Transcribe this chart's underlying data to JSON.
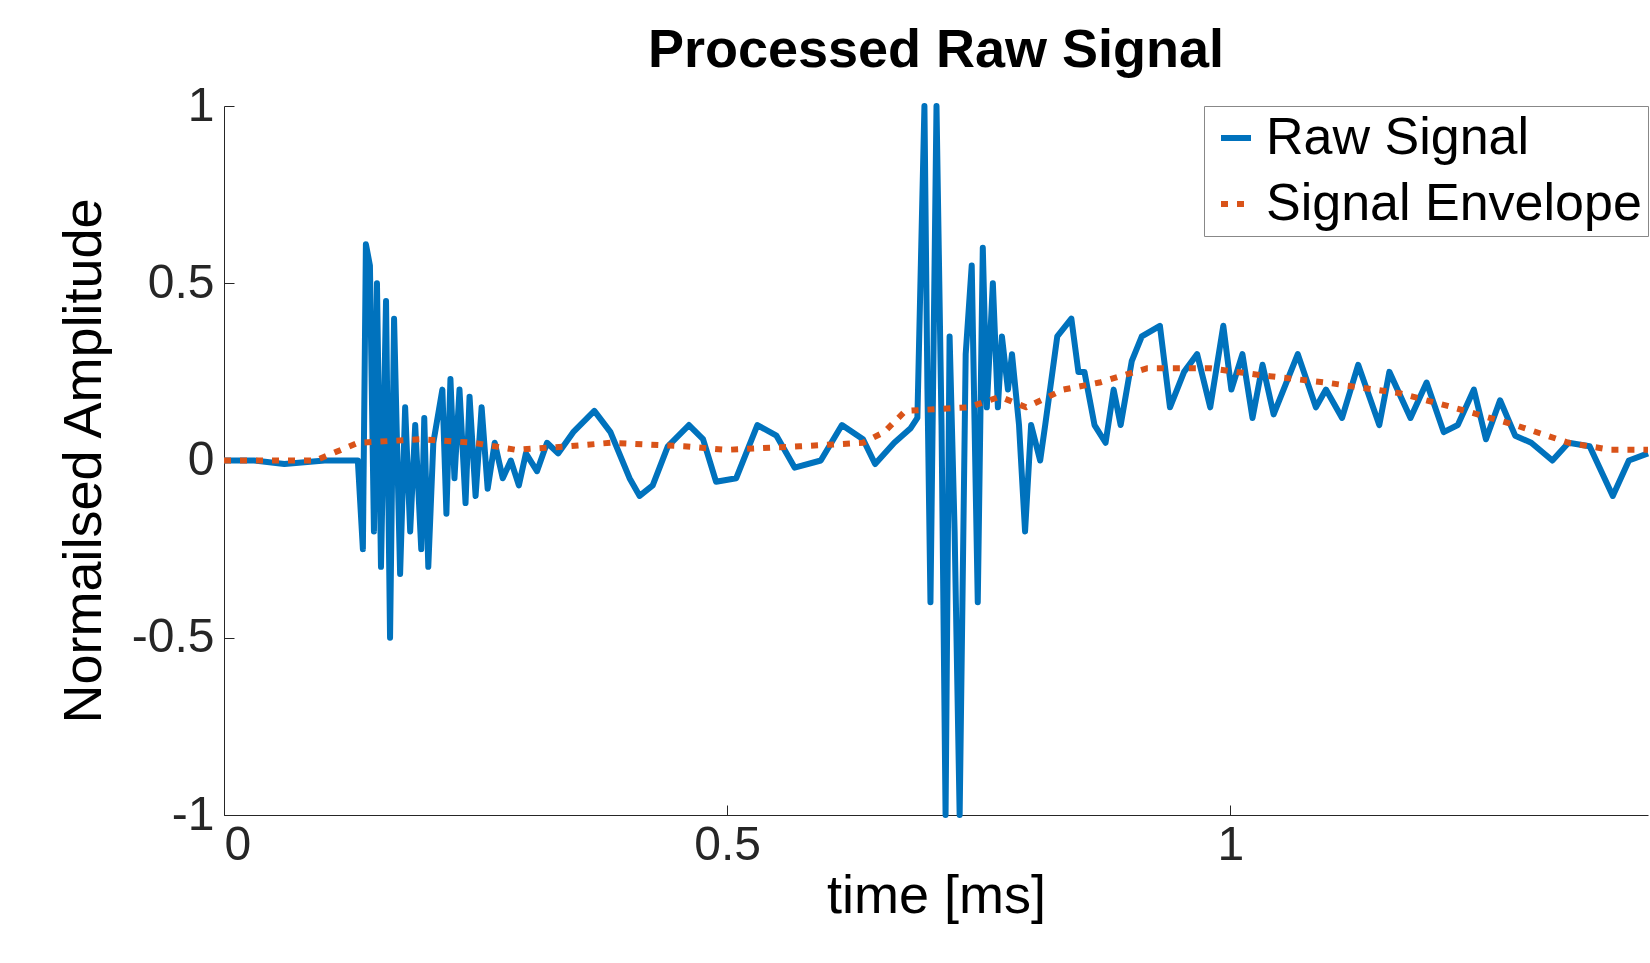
{
  "chart_data": {
    "type": "line",
    "title": "Processed Raw Signal",
    "xlabel": "time [ms]",
    "ylabel": "Normailsed Amplitude",
    "xlim": [
      0,
      1.415
    ],
    "xticks": [
      0,
      0.5,
      1
    ],
    "ylim": [
      -1,
      1
    ],
    "yticks": [
      -1,
      -0.5,
      0,
      0.5,
      1
    ],
    "grid": false,
    "legend": "top right",
    "series": [
      {
        "name": "Raw Signal",
        "color": "#0072bd",
        "line_style": "solid",
        "x": [
          0,
          0.03,
          0.06,
          0.1,
          0.133,
          0.138,
          0.141,
          0.145,
          0.149,
          0.152,
          0.156,
          0.161,
          0.165,
          0.169,
          0.175,
          0.18,
          0.185,
          0.19,
          0.196,
          0.199,
          0.203,
          0.208,
          0.217,
          0.221,
          0.225,
          0.229,
          0.234,
          0.24,
          0.244,
          0.25,
          0.256,
          0.262,
          0.269,
          0.277,
          0.285,
          0.293,
          0.3,
          0.311,
          0.321,
          0.332,
          0.347,
          0.368,
          0.384,
          0.403,
          0.413,
          0.426,
          0.441,
          0.462,
          0.476,
          0.489,
          0.509,
          0.53,
          0.549,
          0.567,
          0.593,
          0.614,
          0.635,
          0.647,
          0.666,
          0.682,
          0.689,
          0.696,
          0.699,
          0.702,
          0.708,
          0.713,
          0.717,
          0.721,
          0.726,
          0.731,
          0.737,
          0.743,
          0.749,
          0.754,
          0.758,
          0.764,
          0.769,
          0.773,
          0.779,
          0.783,
          0.79,
          0.796,
          0.802,
          0.811,
          0.816,
          0.828,
          0.842,
          0.849,
          0.855,
          0.865,
          0.876,
          0.884,
          0.891,
          0.902,
          0.912,
          0.93,
          0.94,
          0.954,
          0.967,
          0.98,
          0.993,
          1.001,
          1.012,
          1.022,
          1.032,
          1.043,
          1.067,
          1.085,
          1.095,
          1.111,
          1.127,
          1.148,
          1.158,
          1.179,
          1.195,
          1.212,
          1.226,
          1.242,
          1.254,
          1.268,
          1.283,
          1.299,
          1.32,
          1.336,
          1.357,
          1.38,
          1.396,
          1.415
        ],
        "values": [
          0,
          0,
          -0.01,
          0,
          0,
          -0.25,
          0.61,
          0.55,
          -0.2,
          0.5,
          -0.3,
          0.45,
          -0.5,
          0.4,
          -0.32,
          0.15,
          -0.2,
          0.1,
          -0.25,
          0.12,
          -0.3,
          0.05,
          0.2,
          -0.15,
          0.23,
          -0.05,
          0.2,
          -0.12,
          0.18,
          -0.1,
          0.15,
          -0.08,
          0.05,
          -0.05,
          0,
          -0.07,
          0.02,
          -0.03,
          0.05,
          0.02,
          0.08,
          0.14,
          0.08,
          -0.05,
          -0.1,
          -0.07,
          0.04,
          0.1,
          0.06,
          -0.06,
          -0.05,
          0.1,
          0.07,
          -0.02,
          0,
          0.1,
          0.06,
          -0.01,
          0.05,
          0.09,
          0.12,
          1,
          0.2,
          -0.4,
          1,
          0.1,
          -1,
          0.35,
          -0.2,
          -1,
          0.3,
          0.55,
          -0.4,
          0.6,
          0.15,
          0.5,
          0.15,
          0.35,
          0.2,
          0.3,
          0.1,
          -0.2,
          0.1,
          0,
          0.1,
          0.35,
          0.4,
          0.25,
          0.25,
          0.1,
          0.05,
          0.2,
          0.1,
          0.28,
          0.35,
          0.38,
          0.15,
          0.25,
          0.3,
          0.15,
          0.38,
          0.2,
          0.3,
          0.12,
          0.27,
          0.13,
          0.3,
          0.15,
          0.2,
          0.12,
          0.27,
          0.1,
          0.25,
          0.12,
          0.22,
          0.08,
          0.1,
          0.2,
          0.06,
          0.17,
          0.07,
          0.05,
          0,
          0.05,
          0.04,
          -0.1,
          0,
          0.02
        ]
      },
      {
        "name": "Signal Envelope",
        "color": "#d95319",
        "line_style": "dotted",
        "x": [
          0,
          0.091,
          0.133,
          0.196,
          0.248,
          0.29,
          0.342,
          0.384,
          0.457,
          0.499,
          0.572,
          0.635,
          0.656,
          0.677,
          0.74,
          0.771,
          0.797,
          0.834,
          0.87,
          0.917,
          0.98,
          1.032,
          1.095,
          1.168,
          1.221,
          1.283,
          1.336,
          1.378,
          1.415
        ],
        "values": [
          0,
          0,
          0.05,
          0.06,
          0.05,
          0.03,
          0.04,
          0.05,
          0.04,
          0.03,
          0.04,
          0.05,
          0.08,
          0.14,
          0.15,
          0.18,
          0.15,
          0.2,
          0.22,
          0.26,
          0.26,
          0.24,
          0.22,
          0.19,
          0.15,
          0.1,
          0.05,
          0.03,
          0.03
        ]
      }
    ]
  }
}
